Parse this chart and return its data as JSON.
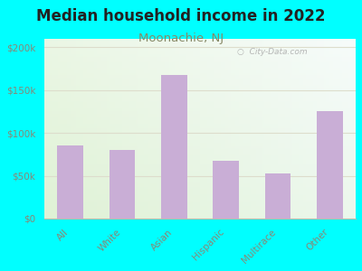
{
  "title": "Median household income in 2022",
  "subtitle": "Moonachie, NJ",
  "categories": [
    "All",
    "White",
    "Asian",
    "Hispanic",
    "Multirace",
    "Other"
  ],
  "values": [
    85000,
    80000,
    168000,
    68000,
    53000,
    126000
  ],
  "bar_color": "#c9aed6",
  "background_color": "#00ffff",
  "title_fontsize": 12,
  "subtitle_fontsize": 9.5,
  "subtitle_color": "#888866",
  "title_color": "#222222",
  "tick_label_color": "#888877",
  "ylim": [
    0,
    210000
  ],
  "yticks": [
    0,
    50000,
    100000,
    150000,
    200000
  ],
  "ytick_labels": [
    "$0",
    "$50k",
    "$100k",
    "$150k",
    "$200k"
  ],
  "watermark": "City-Data.com",
  "grid_color": "#ddddcc"
}
